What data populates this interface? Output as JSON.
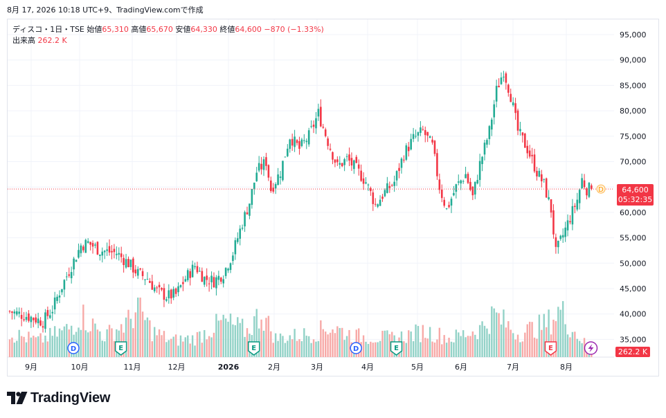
{
  "header": {
    "timestamp": "8月 17, 2026 10:18 UTC+9、TradingView.comで作成"
  },
  "legend": {
    "symbol": "ディスコ・1日・TSE",
    "open_label": "始値",
    "open_value": "65,310",
    "high_label": "高値",
    "high_value": "65,670",
    "low_label": "安値",
    "low_value": "64,330",
    "close_label": "終値",
    "close_value": "64,600",
    "change": "−870 (−1.33%)",
    "volume_label": "出来高",
    "volume_value": "262.2 K"
  },
  "price_tag": {
    "price": "64,600",
    "countdown": "05:32:35"
  },
  "volume_tag": {
    "value": "262.2 K"
  },
  "event_marker_label": "D",
  "brand": {
    "name": "TradingView"
  },
  "colors": {
    "up": "#22ab94",
    "down": "#f23645",
    "up_volume": "#92d2c7",
    "down_volume": "#f7a9a7",
    "last_price_line": "#f23645",
    "dividend": "#2962ff",
    "earnings": "#089981",
    "earnings_next": "#f23645",
    "lightning": "#9c27b0"
  },
  "chart_data": {
    "type": "candlestick",
    "x_labels": [
      "9月",
      "10月",
      "11月",
      "12月",
      "2026",
      "2月",
      "3月",
      "4月",
      "5月",
      "6月",
      "7月",
      "8月"
    ],
    "y_ticks": [
      "95,000",
      "90,000",
      "85,000",
      "80,000",
      "75,000",
      "70,000",
      "65,000",
      "60,000",
      "55,000",
      "50,000",
      "45,000",
      "40,000",
      "35,000"
    ],
    "last_price": 64600,
    "last_bar": {
      "open": 65310,
      "high": 65670,
      "low": 64330,
      "close": 64600,
      "volume": "262.2 K"
    },
    "path": [
      [
        0,
        40500
      ],
      [
        8,
        39500
      ],
      [
        14,
        38500
      ],
      [
        18,
        41000
      ],
      [
        22,
        45500
      ],
      [
        26,
        49500
      ],
      [
        30,
        53500
      ],
      [
        33,
        54000
      ],
      [
        38,
        52500
      ],
      [
        45,
        52000
      ],
      [
        50,
        50000
      ],
      [
        54,
        48000
      ],
      [
        58,
        47000
      ],
      [
        62,
        44500
      ],
      [
        66,
        43500
      ],
      [
        70,
        43800
      ],
      [
        74,
        47000
      ],
      [
        78,
        49500
      ],
      [
        82,
        47000
      ],
      [
        86,
        46500
      ],
      [
        90,
        48000
      ],
      [
        94,
        52000
      ],
      [
        98,
        58000
      ],
      [
        101,
        62000
      ],
      [
        104,
        68000
      ],
      [
        108,
        70000
      ],
      [
        110,
        64500
      ],
      [
        114,
        68000
      ],
      [
        118,
        75000
      ],
      [
        122,
        72500
      ],
      [
        126,
        75000
      ],
      [
        130,
        79500
      ],
      [
        134,
        74000
      ],
      [
        138,
        69000
      ],
      [
        142,
        70500
      ],
      [
        146,
        68500
      ],
      [
        150,
        66000
      ],
      [
        154,
        61500
      ],
      [
        158,
        64000
      ],
      [
        162,
        66000
      ],
      [
        166,
        71500
      ],
      [
        170,
        74500
      ],
      [
        174,
        76000
      ],
      [
        178,
        73000
      ],
      [
        181,
        65000
      ],
      [
        184,
        60500
      ],
      [
        188,
        65000
      ],
      [
        192,
        67500
      ],
      [
        195,
        63000
      ],
      [
        198,
        69500
      ],
      [
        202,
        76000
      ],
      [
        205,
        84000
      ],
      [
        208,
        88000
      ],
      [
        211,
        83000
      ],
      [
        214,
        76000
      ],
      [
        218,
        72500
      ],
      [
        222,
        68000
      ],
      [
        225,
        65500
      ],
      [
        228,
        60500
      ],
      [
        230,
        52000
      ],
      [
        233,
        55500
      ],
      [
        236,
        59000
      ],
      [
        239,
        62500
      ],
      [
        241,
        66500
      ],
      [
        243,
        64600
      ]
    ],
    "volume_bars": [
      [
        0,
        1.0
      ],
      [
        12,
        0.7
      ],
      [
        25,
        1.2
      ],
      [
        30,
        1.8
      ],
      [
        40,
        0.9
      ],
      [
        50,
        1.5
      ],
      [
        54,
        2.1
      ],
      [
        60,
        1.1
      ],
      [
        68,
        0.7
      ],
      [
        78,
        0.8
      ],
      [
        90,
        1.5
      ],
      [
        100,
        1.1
      ],
      [
        106,
        1.9
      ],
      [
        112,
        0.8
      ],
      [
        128,
        1.0
      ],
      [
        135,
        1.3
      ],
      [
        145,
        0.9
      ],
      [
        162,
        0.8
      ],
      [
        175,
        1.1
      ],
      [
        186,
        0.8
      ],
      [
        198,
        1.2
      ],
      [
        204,
        1.8
      ],
      [
        214,
        1.0
      ],
      [
        226,
        1.4
      ],
      [
        232,
        2.0
      ],
      [
        236,
        1.3
      ],
      [
        243,
        0.5
      ]
    ],
    "events": [
      {
        "bar": 28,
        "letter": "D"
      },
      {
        "bar": 48,
        "letter": "E"
      },
      {
        "bar": 104,
        "letter": "E"
      },
      {
        "bar": 147,
        "letter": "D"
      },
      {
        "bar": 164,
        "letter": "E"
      },
      {
        "bar": 229,
        "letter": "E"
      },
      {
        "bar": 243,
        "letter": "⚡"
      }
    ]
  }
}
